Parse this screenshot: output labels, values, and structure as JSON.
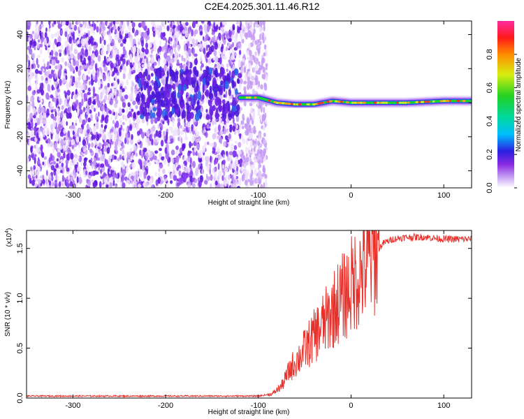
{
  "title": "C2E4.2025.301.11.46.R12",
  "chart_data": [
    {
      "type": "heatmap",
      "xlabel": "Height of straight line (km)",
      "ylabel": "Frequency (Hz)",
      "xlim": [
        -350,
        130
      ],
      "ylim": [
        -50,
        48
      ],
      "xticks": [
        -300,
        -200,
        -100,
        0,
        100
      ],
      "yticks": [
        -40,
        -20,
        0,
        20,
        40
      ],
      "ridge_center_hz": [
        {
          "x": -120,
          "y": 3
        },
        {
          "x": -100,
          "y": 3
        },
        {
          "x": -80,
          "y": 0
        },
        {
          "x": -60,
          "y": -1
        },
        {
          "x": -40,
          "y": -1
        },
        {
          "x": -20,
          "y": 1
        },
        {
          "x": 0,
          "y": 0
        },
        {
          "x": 20,
          "y": 0
        },
        {
          "x": 60,
          "y": 0
        },
        {
          "x": 100,
          "y": 1
        },
        {
          "x": 130,
          "y": 1
        }
      ],
      "noise_region_end_km": -100,
      "colorbar": {
        "label": "Normalized spectral amplitude",
        "range": [
          0,
          1
        ],
        "ticks": [
          "0.0",
          "0.2",
          "0.4",
          "0.6",
          "0.8"
        ]
      }
    },
    {
      "type": "line",
      "xlabel": "Height of straight line (km)",
      "ylabel": "SNR (10 * v/v)",
      "y_multiplier_label": "(x10",
      "y_multiplier_exp": "4",
      "xlim": [
        -350,
        130
      ],
      "ylim": [
        0,
        1.68
      ],
      "xticks": [
        -300,
        -200,
        -100,
        0,
        100
      ],
      "yticks": [
        "0.0",
        "0.5",
        "1.0",
        "1.5"
      ],
      "color": "#e8302a",
      "series": [
        {
          "name": "SNR",
          "x": [
            -350,
            -200,
            -100,
            -85,
            -75,
            -65,
            -55,
            -45,
            -35,
            -25,
            -15,
            -5,
            5,
            15,
            25,
            35,
            45,
            60,
            80,
            100,
            130
          ],
          "y": [
            0.02,
            0.02,
            0.02,
            0.04,
            0.12,
            0.3,
            0.42,
            0.55,
            0.68,
            0.8,
            0.95,
            1.05,
            1.2,
            1.3,
            1.45,
            1.56,
            1.6,
            1.62,
            1.62,
            1.6,
            1.6
          ]
        }
      ]
    }
  ]
}
